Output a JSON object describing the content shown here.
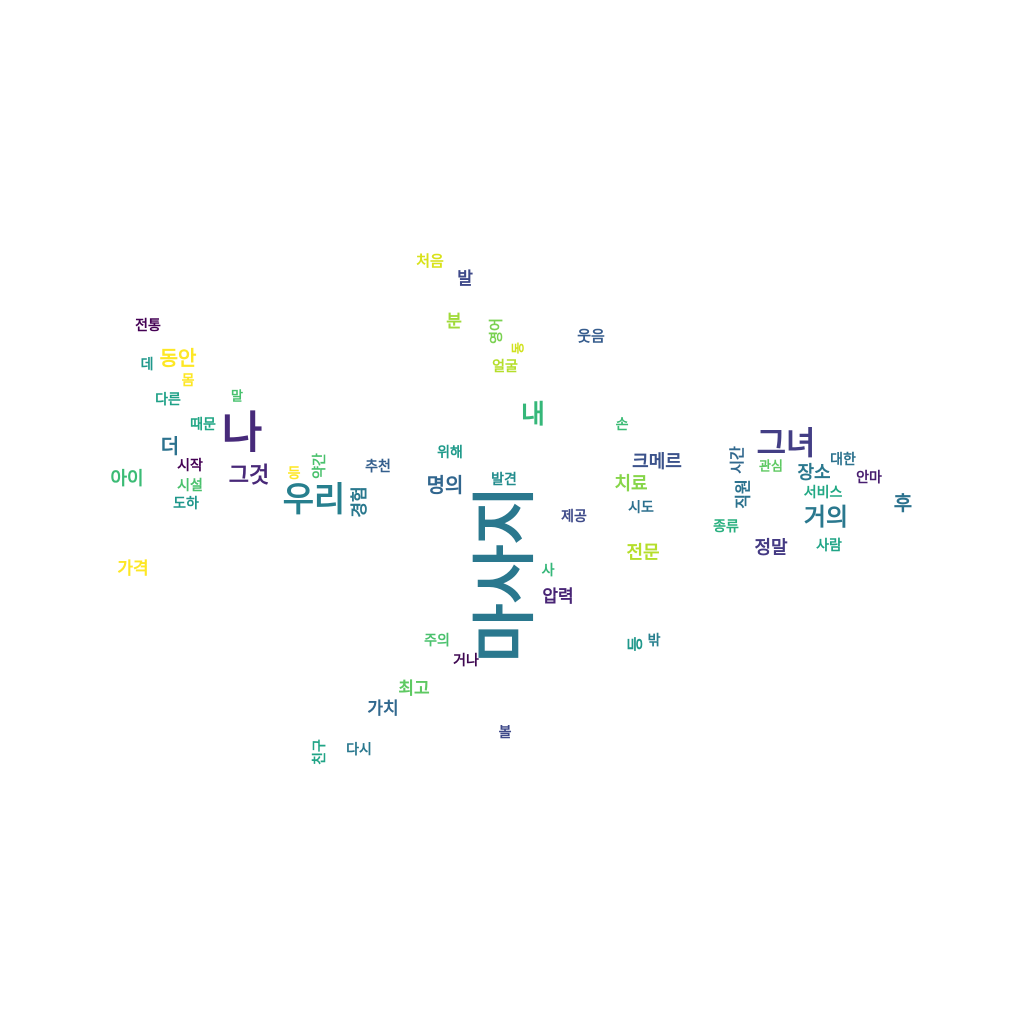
{
  "words": [
    {
      "text": "마사지",
      "color": "#2a788e",
      "rotated": true
    },
    {
      "text": "나",
      "color": "#472a7a"
    },
    {
      "text": "우리",
      "color": "#277f8e"
    },
    {
      "text": "그녀",
      "color": "#433e85"
    },
    {
      "text": "내",
      "color": "#35b779"
    },
    {
      "text": "거의",
      "color": "#2a788e"
    },
    {
      "text": "그것",
      "color": "#482878"
    },
    {
      "text": "명의",
      "color": "#31668e"
    },
    {
      "text": "크메르",
      "color": "#3b528b"
    },
    {
      "text": "동안",
      "color": "#fde725"
    },
    {
      "text": "더",
      "color": "#2c728e"
    },
    {
      "text": "아이",
      "color": "#3bbb75"
    },
    {
      "text": "후",
      "color": "#2c728e"
    },
    {
      "text": "정말",
      "color": "#443a83"
    },
    {
      "text": "장소",
      "color": "#2a788e"
    },
    {
      "text": "치료",
      "color": "#86d549"
    },
    {
      "text": "전문",
      "color": "#b5de2b"
    },
    {
      "text": "압력",
      "color": "#482475"
    },
    {
      "text": "최고",
      "color": "#5ec962"
    },
    {
      "text": "가치",
      "color": "#31688e"
    },
    {
      "text": "가격",
      "color": "#fde725"
    },
    {
      "text": "발",
      "color": "#3e4989"
    },
    {
      "text": "분",
      "color": "#a0da39"
    },
    {
      "text": "경험",
      "color": "#2a788e",
      "rotated": true
    },
    {
      "text": "직원",
      "color": "#2c728e",
      "rotated": true
    },
    {
      "text": "시간",
      "color": "#31688e",
      "rotated": true
    },
    {
      "text": "등",
      "color": "#1f988b",
      "rotated": true
    },
    {
      "text": "처음",
      "color": "#d8e219"
    },
    {
      "text": "웃음",
      "color": "#365c8d"
    },
    {
      "text": "얼굴",
      "color": "#b5de2b"
    },
    {
      "text": "영어",
      "color": "#7ad151",
      "rotated": true
    },
    {
      "text": "동",
      "color": "#d0e11c",
      "rotated": true
    },
    {
      "text": "몸",
      "color": "#fde725"
    },
    {
      "text": "말",
      "color": "#48c16e"
    },
    {
      "text": "다른",
      "color": "#1fa187"
    },
    {
      "text": "때문",
      "color": "#21a685"
    },
    {
      "text": "데",
      "color": "#1f988b"
    },
    {
      "text": "전통",
      "color": "#440154"
    },
    {
      "text": "시작",
      "color": "#440154"
    },
    {
      "text": "시설",
      "color": "#4ac16d"
    },
    {
      "text": "도하",
      "color": "#1f968b"
    },
    {
      "text": "등",
      "color": "#fde725"
    },
    {
      "text": "약간",
      "color": "#4ac16d",
      "rotated": true
    },
    {
      "text": "추천",
      "color": "#355f8d"
    },
    {
      "text": "위해",
      "color": "#1f9a8a"
    },
    {
      "text": "발견",
      "color": "#228c8d"
    },
    {
      "text": "손",
      "color": "#3bbb75"
    },
    {
      "text": "제공",
      "color": "#3e4a89"
    },
    {
      "text": "시도",
      "color": "#2d708e"
    },
    {
      "text": "관심",
      "color": "#5ec962"
    },
    {
      "text": "대한",
      "color": "#2c728e"
    },
    {
      "text": "안마",
      "color": "#481d6f"
    },
    {
      "text": "서비스",
      "color": "#22a884"
    },
    {
      "text": "종류",
      "color": "#29af7f"
    },
    {
      "text": "사람",
      "color": "#20a486"
    },
    {
      "text": "사",
      "color": "#35b779"
    },
    {
      "text": "주의",
      "color": "#4ac16d"
    },
    {
      "text": "거나",
      "color": "#3e0751"
    },
    {
      "text": "밖",
      "color": "#277f8e"
    },
    {
      "text": "다시",
      "color": "#2a788e"
    },
    {
      "text": "친구",
      "color": "#20a486",
      "rotated": true
    },
    {
      "text": "볼",
      "color": "#3e4989"
    }
  ]
}
